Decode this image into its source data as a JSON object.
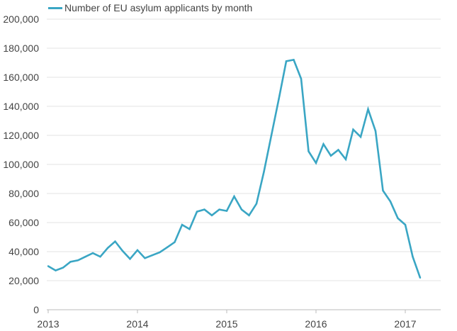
{
  "chart_data": {
    "type": "line",
    "title": "",
    "xlabel": "",
    "ylabel": "",
    "ylim": [
      0,
      200000
    ],
    "yticks": [
      "0",
      "20,000",
      "40,000",
      "60,000",
      "80,000",
      "100,000",
      "120,000",
      "140,000",
      "160,000",
      "180,000",
      "200,000"
    ],
    "xticks": [
      "2013",
      "2014",
      "2015",
      "2016",
      "2017"
    ],
    "grid": true,
    "legend_position": "top-left",
    "color": "#3aa6c4",
    "series": [
      {
        "name": "Number of EU asylum applicants by month",
        "start": "2013-01",
        "values": [
          30000,
          27000,
          29000,
          33000,
          34000,
          36500,
          39000,
          36500,
          42500,
          47000,
          40500,
          35000,
          41000,
          35500,
          37500,
          39500,
          43000,
          46500,
          58500,
          55500,
          67500,
          69000,
          65000,
          69000,
          68000,
          78000,
          69000,
          65000,
          73000,
          95000,
          120000,
          145000,
          171000,
          172000,
          159000,
          109000,
          101000,
          114000,
          106000,
          110000,
          103500,
          124000,
          119000,
          138000,
          123000,
          82000,
          74500,
          63000,
          58500,
          36500,
          22000
        ]
      }
    ]
  }
}
